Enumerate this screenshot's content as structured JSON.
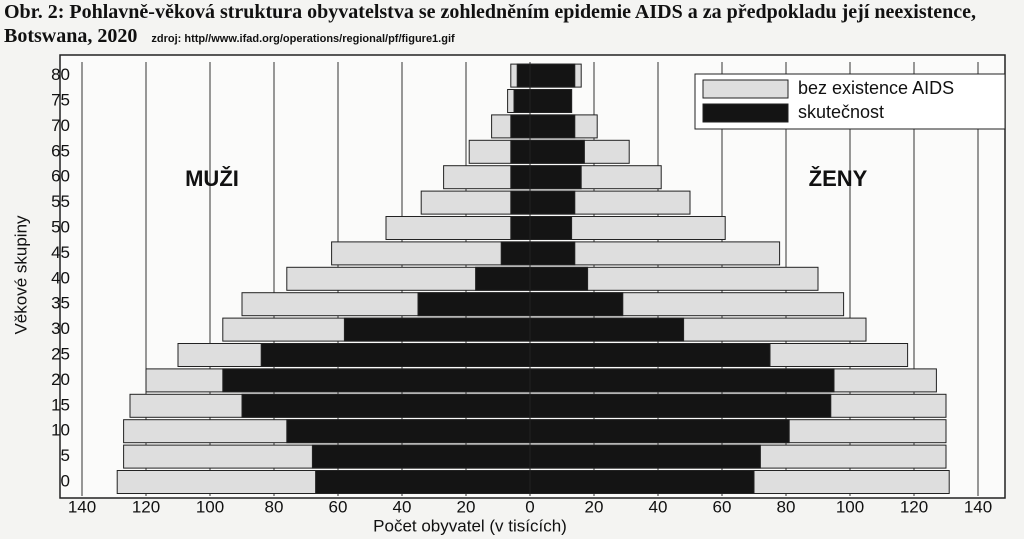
{
  "chart_data": {
    "type": "pyramid",
    "title": "Obr. 2: Pohlavně-věková struktura obyvatelstva  se zohledněním epidemie AIDS a za předpokladu její neexistence, Botswana, 2020",
    "source": "zdroj: http//www.ifad.org/operations/regional/pf/figure1.gif",
    "xlabel": "Počet obyvatel (v tisících)",
    "ylabel": "Věkové skupiny",
    "annotations": [
      "MUŽI",
      "ŽENY"
    ],
    "categories": [
      "0",
      "5",
      "10",
      "15",
      "20",
      "25",
      "30",
      "35",
      "40",
      "45",
      "50",
      "55",
      "60",
      "65",
      "70",
      "75",
      "80"
    ],
    "series": [
      {
        "name": "bez existence AIDS",
        "color": "#dedede",
        "male": [
          -129,
          -127,
          -127,
          -125,
          -120,
          -110,
          -96,
          -90,
          -76,
          -62,
          -45,
          -34,
          -27,
          -19,
          -12,
          -7,
          -6
        ],
        "female": [
          131,
          130,
          130,
          130,
          127,
          118,
          105,
          98,
          90,
          78,
          61,
          50,
          41,
          31,
          21,
          13,
          16
        ]
      },
      {
        "name": "skutečnost",
        "color": "#141414",
        "male": [
          -67,
          -68,
          -76,
          -90,
          -96,
          -84,
          -58,
          -35,
          -17,
          -9,
          -6,
          -6,
          -6,
          -6,
          -6,
          -5,
          -4
        ],
        "female": [
          70,
          72,
          81,
          94,
          95,
          75,
          48,
          29,
          18,
          14,
          13,
          14,
          16,
          17,
          14,
          13,
          14
        ]
      }
    ],
    "xlim": [
      -140,
      140
    ],
    "xticks": [
      {
        "value": -140,
        "label": "140"
      },
      {
        "value": -120,
        "label": "120"
      },
      {
        "value": -100,
        "label": "100"
      },
      {
        "value": -80,
        "label": "80"
      },
      {
        "value": -60,
        "label": "60"
      },
      {
        "value": -40,
        "label": "40"
      },
      {
        "value": -20,
        "label": "20"
      },
      0,
      20,
      40,
      60,
      80,
      100,
      120,
      140
    ],
    "grid": true
  }
}
